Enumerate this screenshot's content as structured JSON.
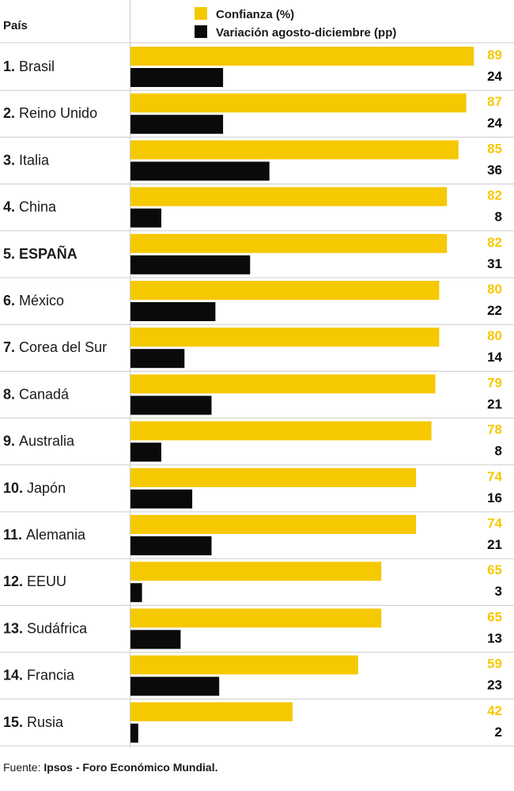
{
  "colors": {
    "confidence": "#F5C800",
    "variation": "#0a0a0a",
    "grid": "#cccccc"
  },
  "chart_data": {
    "type": "bar",
    "column_header": "País",
    "legend": [
      "Confianza (%)",
      "Variación agosto-diciembre (pp)"
    ],
    "categories": [
      {
        "rank": "1.",
        "name": "Brasil",
        "bold": false
      },
      {
        "rank": "2.",
        "name": "Reino Unido",
        "bold": false
      },
      {
        "rank": "3.",
        "name": "Italia",
        "bold": false
      },
      {
        "rank": "4.",
        "name": "China",
        "bold": false
      },
      {
        "rank": "5.",
        "name": "ESPAÑA",
        "bold": true
      },
      {
        "rank": "6.",
        "name": "México",
        "bold": false
      },
      {
        "rank": "7.",
        "name": "Corea del Sur",
        "bold": false
      },
      {
        "rank": "8.",
        "name": "Canadá",
        "bold": false
      },
      {
        "rank": "9.",
        "name": "Australia",
        "bold": false
      },
      {
        "rank": "10.",
        "name": "Japón",
        "bold": false
      },
      {
        "rank": "11.",
        "name": "Alemania",
        "bold": false
      },
      {
        "rank": "12.",
        "name": "EEUU",
        "bold": false
      },
      {
        "rank": "13.",
        "name": "Sudáfrica",
        "bold": false
      },
      {
        "rank": "14.",
        "name": "Francia",
        "bold": false
      },
      {
        "rank": "15.",
        "name": "Rusia",
        "bold": false
      }
    ],
    "series": [
      {
        "name": "Confianza (%)",
        "values": [
          89,
          87,
          85,
          82,
          82,
          80,
          80,
          79,
          78,
          74,
          74,
          65,
          65,
          59,
          42
        ]
      },
      {
        "name": "Variación agosto-diciembre (pp)",
        "values": [
          24,
          24,
          36,
          8,
          31,
          22,
          14,
          21,
          8,
          16,
          21,
          3,
          13,
          23,
          2
        ]
      }
    ]
  },
  "source": {
    "prefix": "Fuente: ",
    "text": "Ipsos - Foro Económico Mundial."
  }
}
